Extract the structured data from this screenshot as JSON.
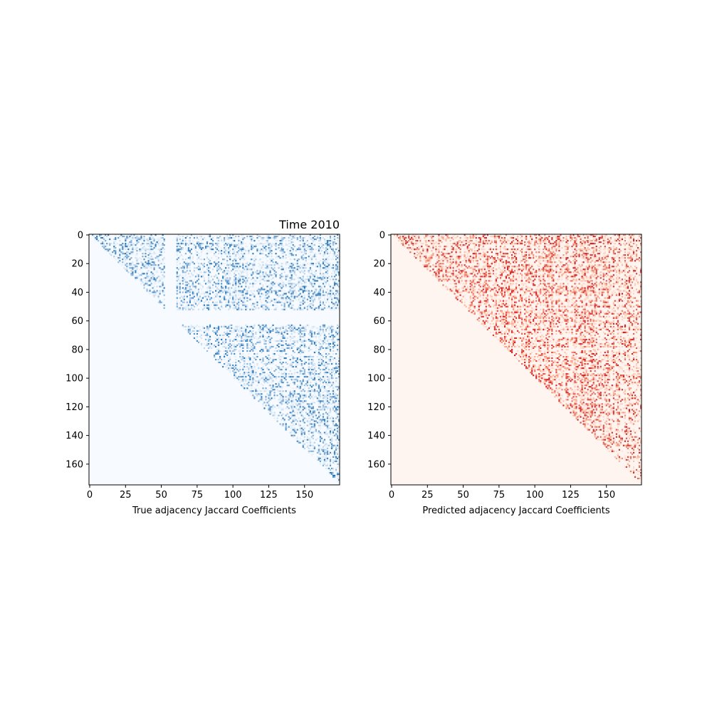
{
  "title": "Time 2010",
  "chart_data": [
    {
      "type": "heatmap",
      "title": "Time 2010",
      "xlabel": "True adjacency Jaccard Coefficients",
      "ylabel": "",
      "matrix_size": 175,
      "xlim": [
        0,
        175
      ],
      "ylim": [
        175,
        0
      ],
      "x_ticks": [
        0,
        25,
        50,
        75,
        100,
        125,
        150
      ],
      "y_ticks": [
        0,
        20,
        40,
        60,
        80,
        100,
        120,
        140,
        160
      ],
      "x_tick_labels": [
        "0",
        "25",
        "50",
        "75",
        "100",
        "125",
        "150"
      ],
      "y_tick_labels": [
        "0",
        "20",
        "40",
        "60",
        "80",
        "100",
        "120",
        "140",
        "160"
      ],
      "colormap": "Blues",
      "color_low": "#f7fbff",
      "color_mid": "#c6dbef",
      "color_high": "#2171b5",
      "structure": "upper-triangular",
      "empty_row_band": [
        53,
        62
      ],
      "empty_column_bands": [
        [
          53,
          60
        ]
      ],
      "grid": false
    },
    {
      "type": "heatmap",
      "title": "",
      "xlabel": "Predicted adjacency Jaccard Coefficients",
      "ylabel": "",
      "matrix_size": 175,
      "xlim": [
        0,
        175
      ],
      "ylim": [
        175,
        0
      ],
      "x_ticks": [
        0,
        25,
        50,
        75,
        100,
        125,
        150
      ],
      "y_ticks": [
        0,
        20,
        40,
        60,
        80,
        100,
        120,
        140,
        160
      ],
      "x_tick_labels": [
        "0",
        "25",
        "50",
        "75",
        "100",
        "125",
        "150"
      ],
      "y_tick_labels": [
        "0",
        "20",
        "40",
        "60",
        "80",
        "100",
        "120",
        "140",
        "160"
      ],
      "colormap": "Reds",
      "color_low": "#fff5f0",
      "color_mid": "#fcae91",
      "color_high": "#cb181d",
      "structure": "upper-triangular",
      "grid": false
    }
  ]
}
